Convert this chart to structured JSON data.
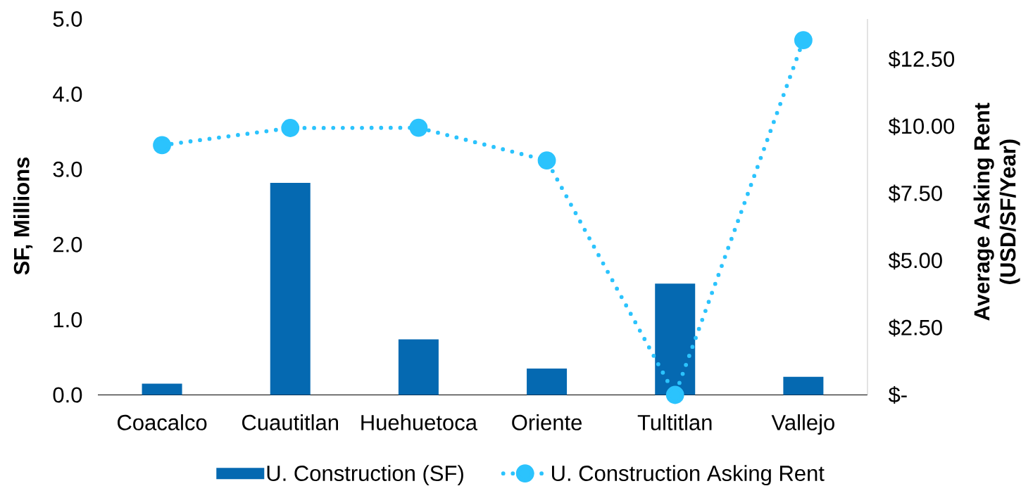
{
  "chart_data": {
    "type": "bar",
    "categories": [
      "Coacalco",
      "Cuautitlan",
      "Huehuetoca",
      "Oriente",
      "Tultitlan",
      "Vallejo"
    ],
    "series": [
      {
        "name": "U. Construction (SF)",
        "color": "#0569b1",
        "values": [
          0.15,
          2.82,
          0.74,
          0.35,
          1.48,
          0.24
        ]
      },
      {
        "name": "U. Construction Asking Rent",
        "type": "line",
        "axis": "y2",
        "color": "#2bc3fd",
        "marker": "circle",
        "line_style": "dotted",
        "values": [
          9.3,
          9.94,
          9.95,
          8.73,
          0,
          13.21
        ]
      }
    ],
    "ylabel": "SF, Millions",
    "y2label": "Average Asking Rent (USD/SF/Year)",
    "ylim": [
      0,
      5
    ],
    "yticks": [
      {
        "value": 0,
        "label": "0.0"
      },
      {
        "value": 1,
        "label": "1.0"
      },
      {
        "value": 2,
        "label": "2.0"
      },
      {
        "value": 3,
        "label": "3.0"
      },
      {
        "value": 4,
        "label": "4.0"
      },
      {
        "value": 5,
        "label": "5.0"
      }
    ],
    "y2lim": [
      0,
      14
    ],
    "y2ticks": [
      {
        "value": 0,
        "label": "$-"
      },
      {
        "value": 2.5,
        "label": "$2.50"
      },
      {
        "value": 5,
        "label": "$5.00"
      },
      {
        "value": 7.5,
        "label": "$7.50"
      },
      {
        "value": 10,
        "label": "$10.00"
      },
      {
        "value": 12.5,
        "label": "$12.50"
      }
    ],
    "legend": "bottom"
  }
}
